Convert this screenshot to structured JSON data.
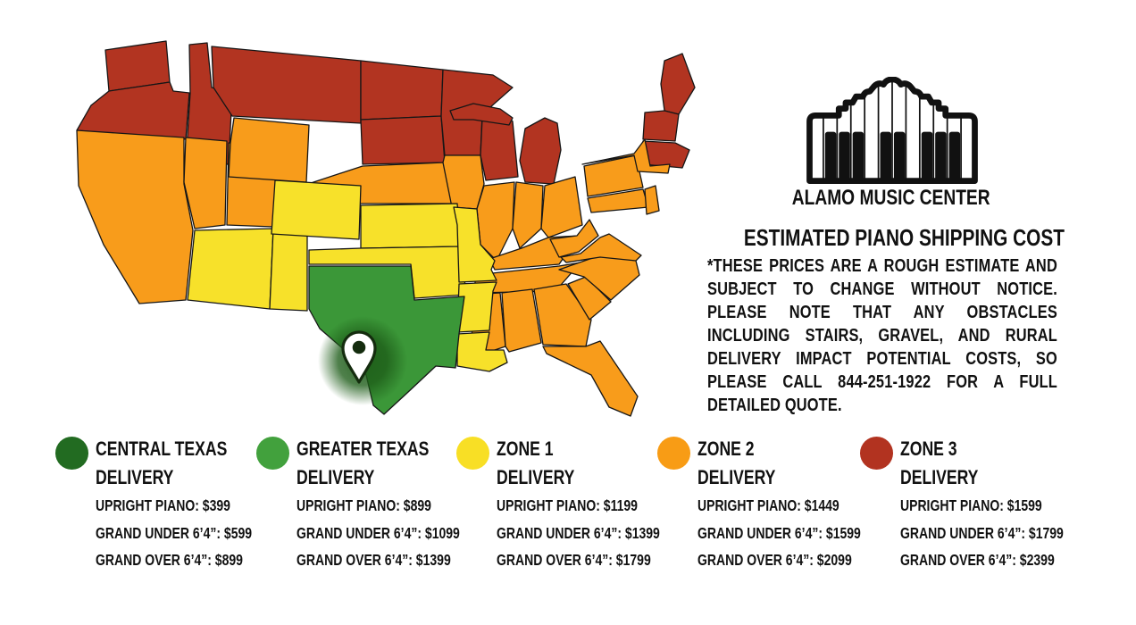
{
  "brand": {
    "name": "ALAMO MUSIC CENTER"
  },
  "panel": {
    "title": "ESTIMATED PIANO SHIPPING COST",
    "disclaimer": "*THESE PRICES ARE A ROUGH ESTIMATE AND SUBJECT TO CHANGE WITHOUT NOTICE. PLEASE NOTE THAT ANY OBSTACLES INCLUDING STAIRS, GRAVEL, AND RURAL DELIVERY IMPACT POTENTIAL COSTS, SO PLEASE CALL 844-251-1922 FOR A FULL DETAILED QUOTE."
  },
  "map": {
    "stroke_color": "#161616",
    "zone_colors": {
      "central_texas": "#1d5c18",
      "greater_texas": "#3b9738",
      "zone1": "#f7e12a",
      "zone2": "#f89c1b",
      "zone3": "#b23421"
    },
    "states": {
      "WA": "zone3",
      "OR": "zone3",
      "ID": "zone3",
      "MT": "zone3",
      "ND": "zone3",
      "SD": "zone3",
      "MN": "zone3",
      "WI": "zone3",
      "MI_UP": "zone3",
      "MI": "zone3",
      "ME": "zone3",
      "VT_NH": "zone3",
      "MA_CT_RI": "zone3",
      "CA": "zone2",
      "NV": "zone2",
      "UT": "zone2",
      "WY": "zone2",
      "NE": "zone2",
      "IA": "zone2",
      "IL": "zone2",
      "IN": "zone2",
      "OH": "zone2",
      "KY": "zone2",
      "TN": "zone2",
      "MS": "zone2",
      "AL": "zone2",
      "GA": "zone2",
      "FL": "zone2",
      "SC": "zone2",
      "NC": "zone2",
      "VA": "zone2",
      "WV": "zone2",
      "PA": "zone2",
      "NY": "zone2",
      "MD_DE": "zone2",
      "NJ": "zone2",
      "AZ": "zone1",
      "NM": "zone1",
      "CO": "zone1",
      "KS": "zone1",
      "OK": "zone1",
      "MO": "zone1",
      "AR": "zone1",
      "LA": "zone1",
      "TX": "greater_texas"
    }
  },
  "legend": {
    "items": [
      {
        "id": "central-texas",
        "color": "#226b21",
        "title": "CENTRAL TEXAS",
        "subtitle": "DELIVERY",
        "prices": [
          "UPRIGHT PIANO: $399",
          "GRAND UNDER 6’4”: $599",
          "GRAND OVER 6’4”: $899"
        ]
      },
      {
        "id": "greater-texas",
        "color": "#42a13d",
        "title": "GREATER TEXAS",
        "subtitle": "DELIVERY",
        "prices": [
          "UPRIGHT PIANO: $899",
          "GRAND UNDER 6’4”: $1099",
          "GRAND OVER 6’4”: $1399"
        ]
      },
      {
        "id": "zone-1",
        "color": "#f8df25",
        "title": "ZONE 1",
        "subtitle": "DELIVERY",
        "prices": [
          "UPRIGHT PIANO: $1199",
          "GRAND UNDER 6’4”: $1399",
          "GRAND OVER 6’4”: $1799"
        ]
      },
      {
        "id": "zone-2",
        "color": "#f89c15",
        "title": "ZONE 2",
        "subtitle": "DELIVERY",
        "prices": [
          "UPRIGHT PIANO: $1449",
          "GRAND UNDER 6’4”: $1599",
          "GRAND OVER 6’4”: $2099"
        ]
      },
      {
        "id": "zone-3",
        "color": "#b23320",
        "title": "ZONE 3",
        "subtitle": "DELIVERY",
        "prices": [
          "UPRIGHT PIANO: $1599",
          "GRAND UNDER 6’4”: $1799",
          "GRAND OVER 6’4”: $2399"
        ]
      }
    ]
  }
}
